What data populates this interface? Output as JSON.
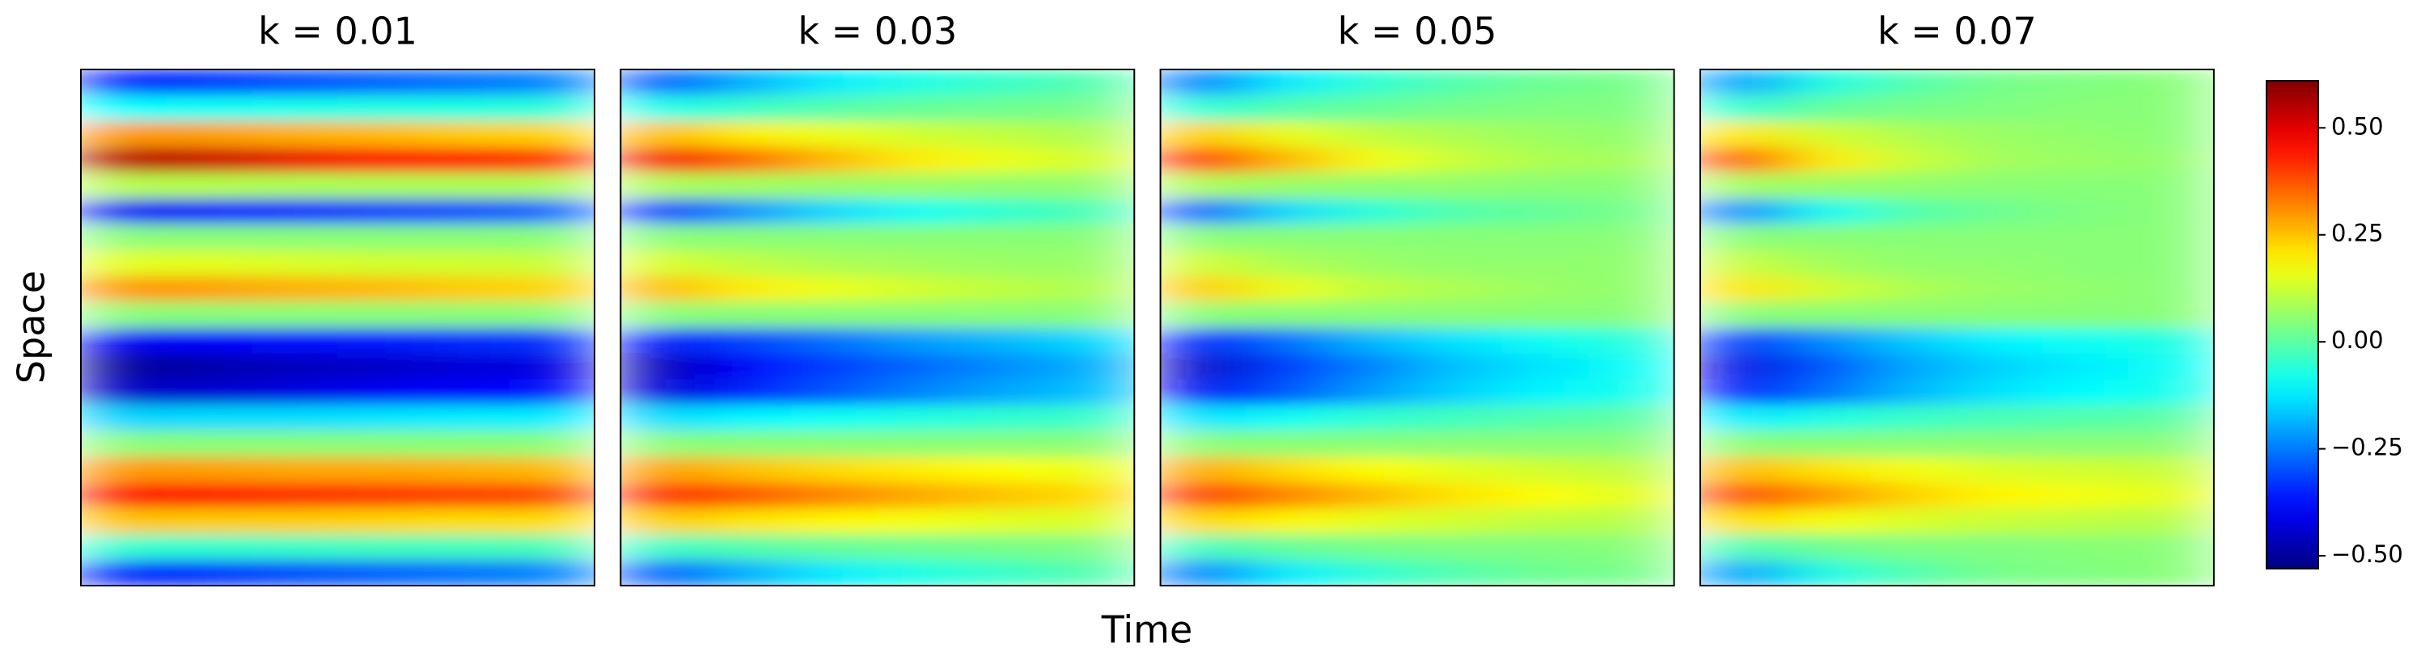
{
  "chart_data": {
    "type": "heatmap",
    "xlabel": "Time",
    "ylabel": "Space",
    "colormap": "jet",
    "colorbar": {
      "lim": [
        -0.53,
        0.61
      ],
      "ticks": [
        {
          "value": -0.5,
          "label": "−0.50"
        },
        {
          "value": -0.25,
          "label": "−0.25"
        },
        {
          "value": 0,
          "label": "0.00"
        },
        {
          "value": 0.25,
          "label": "0.25"
        },
        {
          "value": 0.5,
          "label": "0.50"
        }
      ]
    },
    "panels": [
      {
        "title": "k = 0.01",
        "z": [
          [
            -0.35,
            -0.33,
            -0.3,
            -0.28,
            -0.26,
            -0.24
          ],
          [
            -0.1,
            -0.09,
            -0.08,
            -0.07,
            -0.07,
            -0.06
          ],
          [
            0.3,
            0.29,
            0.27,
            0.26,
            0.24,
            0.23
          ],
          [
            0.55,
            0.53,
            0.49,
            0.46,
            0.44,
            0.41
          ],
          [
            0.1,
            0.1,
            0.09,
            0.09,
            0.09,
            0.09
          ],
          [
            -0.4,
            -0.38,
            -0.35,
            -0.32,
            -0.3,
            -0.27
          ],
          [
            0.05,
            0.05,
            0.05,
            0.05,
            0.05,
            0.05
          ],
          [
            0.15,
            0.15,
            0.14,
            0.13,
            0.13,
            0.12
          ],
          [
            0.3,
            0.29,
            0.27,
            0.26,
            0.24,
            0.23
          ],
          [
            0.05,
            0.05,
            0.05,
            0.05,
            0.05,
            0.05
          ],
          [
            -0.4,
            -0.39,
            -0.37,
            -0.36,
            -0.34,
            -0.33
          ],
          [
            -0.5,
            -0.48,
            -0.46,
            -0.45,
            -0.43,
            -0.42
          ],
          [
            -0.45,
            -0.44,
            -0.42,
            -0.4,
            -0.39,
            -0.38
          ],
          [
            -0.15,
            -0.14,
            -0.14,
            -0.13,
            -0.12,
            -0.12
          ],
          [
            0.05,
            0.05,
            0.05,
            0.05,
            0.05,
            0.05
          ],
          [
            0.3,
            0.29,
            0.28,
            0.28,
            0.27,
            0.26
          ],
          [
            0.45,
            0.44,
            0.42,
            0.41,
            0.4,
            0.39
          ],
          [
            0.25,
            0.24,
            0.24,
            0.23,
            0.22,
            0.22
          ],
          [
            -0.05,
            -0.05,
            -0.04,
            -0.03,
            -0.03,
            -0.02
          ],
          [
            -0.35,
            -0.33,
            -0.3,
            -0.28,
            -0.26,
            -0.24
          ]
        ]
      },
      {
        "title": "k = 0.03",
        "z": [
          [
            -0.29,
            -0.19,
            -0.12,
            -0.07,
            -0.04,
            -0.01
          ],
          [
            -0.08,
            -0.04,
            -0.01,
            0.01,
            0.02,
            0.03
          ],
          [
            0.26,
            0.2,
            0.16,
            0.13,
            0.11,
            0.09
          ],
          [
            0.48,
            0.35,
            0.26,
            0.2,
            0.16,
            0.13
          ],
          [
            0.09,
            0.08,
            0.07,
            0.07,
            0.06,
            0.06
          ],
          [
            -0.33,
            -0.22,
            -0.14,
            -0.09,
            -0.05,
            -0.02
          ],
          [
            0.05,
            0.05,
            0.05,
            0.05,
            0.05,
            0.05
          ],
          [
            0.14,
            0.11,
            0.09,
            0.08,
            0.07,
            0.07
          ],
          [
            0.26,
            0.2,
            0.16,
            0.13,
            0.11,
            0.09
          ],
          [
            0.05,
            0.05,
            0.05,
            0.05,
            0.05,
            0.05
          ],
          [
            -0.38,
            -0.31,
            -0.26,
            -0.21,
            -0.18,
            -0.14
          ],
          [
            -0.47,
            -0.39,
            -0.32,
            -0.27,
            -0.23,
            -0.19
          ],
          [
            -0.43,
            -0.35,
            -0.29,
            -0.24,
            -0.2,
            -0.17
          ],
          [
            -0.14,
            -0.11,
            -0.09,
            -0.07,
            -0.05,
            -0.04
          ],
          [
            0.05,
            0.05,
            0.05,
            0.05,
            0.05,
            0.05
          ],
          [
            0.29,
            0.25,
            0.22,
            0.2,
            0.18,
            0.16
          ],
          [
            0.43,
            0.37,
            0.32,
            0.28,
            0.25,
            0.22
          ],
          [
            0.24,
            0.21,
            0.19,
            0.17,
            0.15,
            0.14
          ],
          [
            -0.04,
            -0.01,
            0.01,
            0.02,
            0.03,
            0.04
          ],
          [
            -0.29,
            -0.19,
            -0.12,
            -0.07,
            -0.04,
            -0.01
          ]
        ]
      },
      {
        "title": "k = 0.05",
        "z": [
          [
            -0.25,
            -0.12,
            -0.05,
            -0.01,
            0.02,
            0.03
          ],
          [
            -0.06,
            -0.01,
            0.01,
            0.03,
            0.04,
            0.04
          ],
          [
            0.24,
            0.16,
            0.11,
            0.09,
            0.07,
            0.06
          ],
          [
            0.43,
            0.26,
            0.17,
            0.12,
            0.09,
            0.08
          ],
          [
            0.09,
            0.07,
            0.06,
            0.06,
            0.05,
            0.05
          ],
          [
            -0.29,
            -0.14,
            -0.06,
            -0.01,
            0.01,
            0.03
          ],
          [
            0.05,
            0.05,
            0.05,
            0.05,
            0.05,
            0.05
          ],
          [
            0.13,
            0.09,
            0.07,
            0.06,
            0.06,
            0.06
          ],
          [
            0.24,
            0.16,
            0.11,
            0.09,
            0.07,
            0.06
          ],
          [
            0.05,
            0.05,
            0.05,
            0.05,
            0.05,
            0.05
          ],
          [
            -0.36,
            -0.26,
            -0.18,
            -0.13,
            -0.09,
            -0.06
          ],
          [
            -0.45,
            -0.32,
            -0.24,
            -0.17,
            -0.13,
            -0.09
          ],
          [
            -0.4,
            -0.29,
            -0.21,
            -0.15,
            -0.11,
            -0.08
          ],
          [
            -0.13,
            -0.09,
            -0.05,
            -0.03,
            -0.01,
            0
          ],
          [
            0.05,
            0.05,
            0.05,
            0.05,
            0.05,
            0.05
          ],
          [
            0.28,
            0.22,
            0.18,
            0.15,
            0.13,
            0.11
          ],
          [
            0.41,
            0.32,
            0.26,
            0.21,
            0.18,
            0.15
          ],
          [
            0.23,
            0.19,
            0.15,
            0.13,
            0.11,
            0.1
          ],
          [
            -0.03,
            0.01,
            0.03,
            0.04,
            0.04,
            0.05
          ],
          [
            -0.25,
            -0.12,
            -0.05,
            -0.01,
            0.02,
            0.03
          ]
        ]
      },
      {
        "title": "k = 0.07",
        "z": [
          [
            -0.21,
            -0.07,
            -0.01,
            0.03,
            0.04,
            0.05
          ],
          [
            -0.05,
            0.01,
            0.03,
            0.04,
            0.05,
            0.05
          ],
          [
            0.21,
            0.13,
            0.09,
            0.07,
            0.06,
            0.05
          ],
          [
            0.38,
            0.2,
            0.12,
            0.08,
            0.07,
            0.06
          ],
          [
            0.08,
            0.07,
            0.06,
            0.05,
            0.05,
            0.05
          ],
          [
            -0.24,
            -0.09,
            -0.01,
            0.02,
            0.04,
            0.05
          ],
          [
            0.05,
            0.05,
            0.05,
            0.05,
            0.05,
            0.05
          ],
          [
            0.12,
            0.08,
            0.06,
            0.06,
            0.05,
            0.05
          ],
          [
            0.21,
            0.13,
            0.09,
            0.07,
            0.06,
            0.05
          ],
          [
            0.05,
            0.05,
            0.05,
            0.05,
            0.05,
            0.05
          ],
          [
            -0.33,
            -0.23,
            -0.16,
            -0.11,
            -0.09,
            -0.07
          ],
          [
            -0.42,
            -0.29,
            -0.2,
            -0.15,
            -0.12,
            -0.09
          ],
          [
            -0.38,
            -0.26,
            -0.18,
            -0.13,
            -0.1,
            -0.08
          ],
          [
            -0.12,
            -0.07,
            -0.04,
            -0.02,
            -0.01,
            0
          ],
          [
            0.05,
            0.05,
            0.05,
            0.05,
            0.05,
            0.05
          ],
          [
            0.26,
            0.21,
            0.17,
            0.14,
            0.13,
            0.12
          ],
          [
            0.39,
            0.3,
            0.23,
            0.19,
            0.17,
            0.15
          ],
          [
            0.22,
            0.17,
            0.14,
            0.12,
            0.11,
            0.1
          ],
          [
            -0.02,
            0.02,
            0.04,
            0.04,
            0.05,
            0.05
          ],
          [
            -0.21,
            -0.07,
            -0.01,
            0.03,
            0.04,
            0.05
          ]
        ]
      }
    ]
  }
}
